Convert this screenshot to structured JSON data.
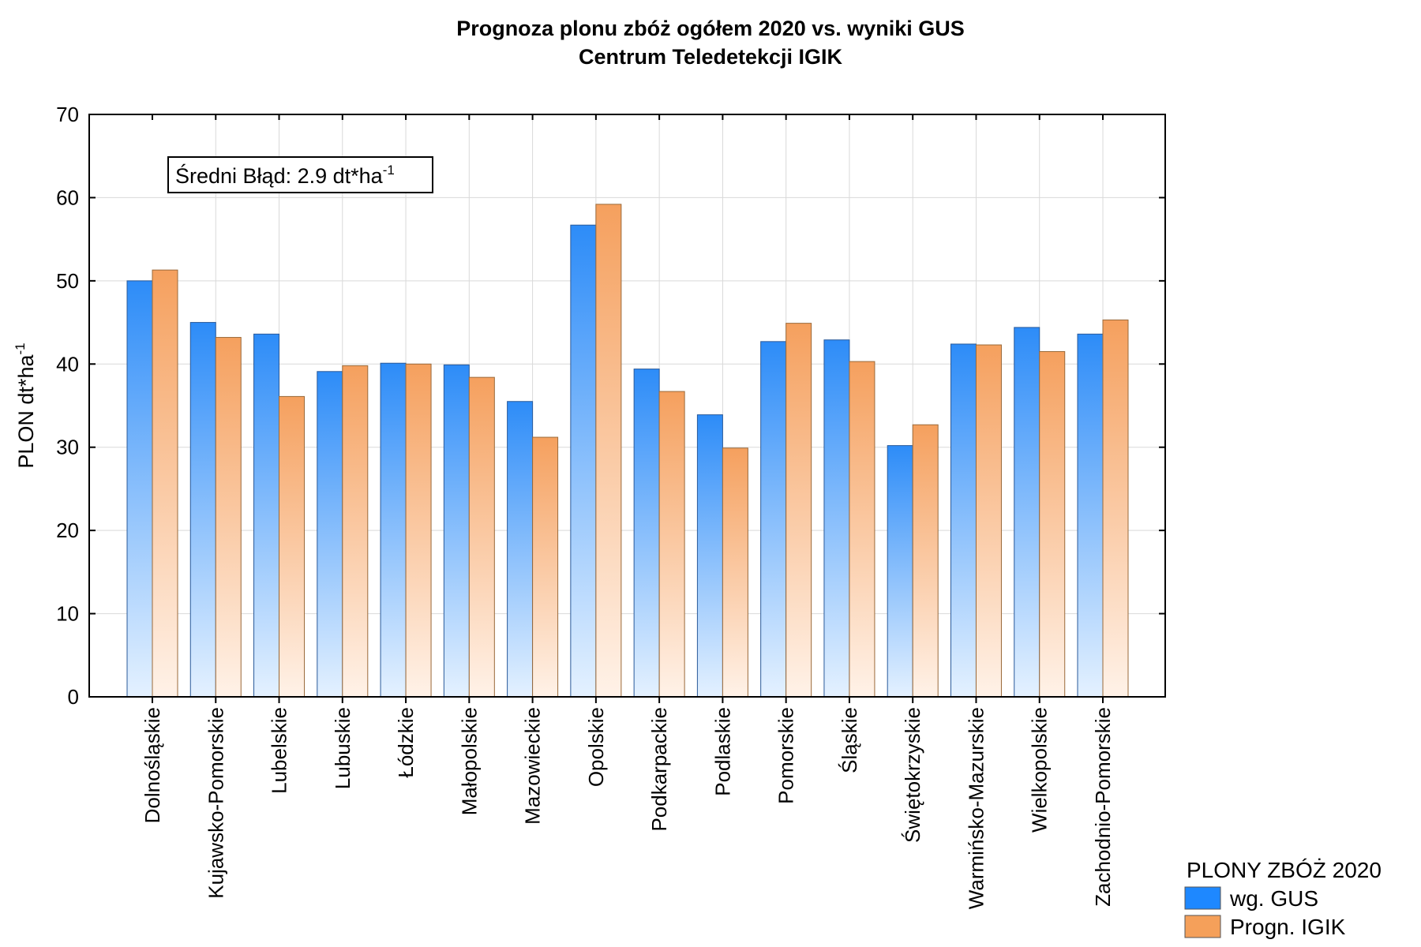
{
  "chart_data": {
    "type": "bar",
    "title": "Prognoza plonu zbóż ogółem 2020 vs. wyniki GUS",
    "subtitle": "Centrum Teledetekcji IGIK",
    "ylabel_main": "PLON dt*ha",
    "ylabel_sup": "-1",
    "xlabel": "",
    "ylim": [
      0,
      70
    ],
    "yticks": [
      "0",
      "10",
      "20",
      "30",
      "40",
      "50",
      "60",
      "70"
    ],
    "grid": true,
    "categories": [
      "Dolnośląskie",
      "Kujawsko-Pomorskie",
      "Lubelskie",
      "Lubuskie",
      "Łódzkie",
      "Małopolskie",
      "Mazowieckie",
      "Opolskie",
      "Podkarpackie",
      "Podlaskie",
      "Pomorskie",
      "Śląskie",
      "Świętokrzyskie",
      "Warmińsko-Mazurskie",
      "Wielkopolskie",
      "Zachodnio-Pomorskie"
    ],
    "series": [
      {
        "name": "wg. GUS",
        "color": "#1E88FF",
        "values": [
          50.0,
          45.0,
          43.6,
          39.1,
          40.1,
          39.9,
          35.5,
          56.7,
          39.4,
          33.9,
          42.7,
          42.9,
          30.2,
          42.4,
          44.4,
          43.6
        ]
      },
      {
        "name": "Progn. IGIK",
        "color": "#F5A05A",
        "values": [
          51.3,
          43.2,
          36.1,
          39.8,
          40.0,
          38.4,
          31.2,
          59.2,
          36.7,
          29.9,
          44.9,
          40.3,
          32.7,
          42.3,
          41.5,
          45.3
        ]
      }
    ],
    "annotation": {
      "text": "Średni Błąd: 2.9 dt*ha",
      "sup": "-1"
    },
    "legend": {
      "title": "PLONY ZBÓŻ 2020",
      "position": "bottom-right"
    }
  }
}
